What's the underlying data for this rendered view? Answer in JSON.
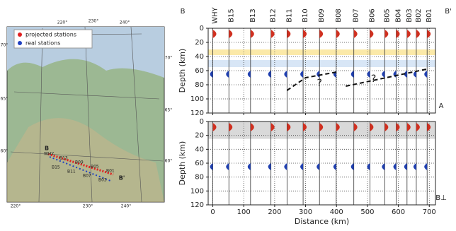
{
  "map": {
    "legend": [
      "projected stations",
      "real stations"
    ],
    "legend_colors": [
      "#e02020",
      "#2040c0"
    ],
    "lon_labels_top": [
      "220°",
      "230°",
      "240°"
    ],
    "lon_labels_bottom": [
      "220°",
      "230°",
      "240°"
    ],
    "lat_labels_left": [
      "70°",
      "65°",
      "60°"
    ],
    "lat_labels_right": [
      "70°",
      "65°",
      "60°"
    ],
    "profile_ends": [
      "B",
      "B'"
    ],
    "station_labels": [
      "WHY",
      "B15",
      "B13",
      "B11",
      "B09",
      "B07",
      "B05",
      "B03",
      "B01"
    ]
  },
  "chart_data": [
    {
      "type": "section",
      "panel_label": "A",
      "end_left": "B",
      "end_right": "B'",
      "categories": [
        "WHY",
        "B15",
        "B13",
        "B12",
        "B11",
        "B10",
        "B09",
        "B08",
        "B07",
        "B06",
        "B05",
        "B04",
        "B03",
        "B02",
        "B01"
      ],
      "x": [
        0,
        52,
        122,
        188,
        240,
        292,
        345,
        399,
        456,
        508,
        556,
        593,
        628,
        658,
        693
      ],
      "ylabel": "Depth (km)",
      "ylim": [
        0,
        120
      ],
      "yticks": [
        0,
        20,
        40,
        60,
        80,
        100,
        120
      ],
      "xlim": [
        -15,
        720
      ],
      "xticks": [
        0,
        100,
        200,
        300,
        400,
        500,
        600,
        700
      ],
      "bands": [
        {
          "from": 30,
          "to": 38,
          "color": "#fbe9a8"
        },
        {
          "from": 45,
          "to": 55,
          "color": "#d8e6f6"
        }
      ],
      "annotations": [
        "?",
        "?"
      ],
      "grid": true
    },
    {
      "type": "section",
      "panel_label": "B⊥",
      "x": [
        0,
        52,
        122,
        188,
        240,
        292,
        345,
        399,
        456,
        508,
        556,
        593,
        628,
        658,
        693
      ],
      "xlabel": "Distance (km)",
      "ylabel": "Depth (km)",
      "ylim": [
        0,
        120
      ],
      "yticks": [
        0,
        20,
        40,
        60,
        80,
        100,
        120
      ],
      "xlim": [
        -15,
        720
      ],
      "xticks": [
        0,
        100,
        200,
        300,
        400,
        500,
        600,
        700
      ],
      "bands": [
        {
          "from": 0,
          "to": 25,
          "color": "#d9d9d9"
        }
      ],
      "grid": true
    }
  ]
}
